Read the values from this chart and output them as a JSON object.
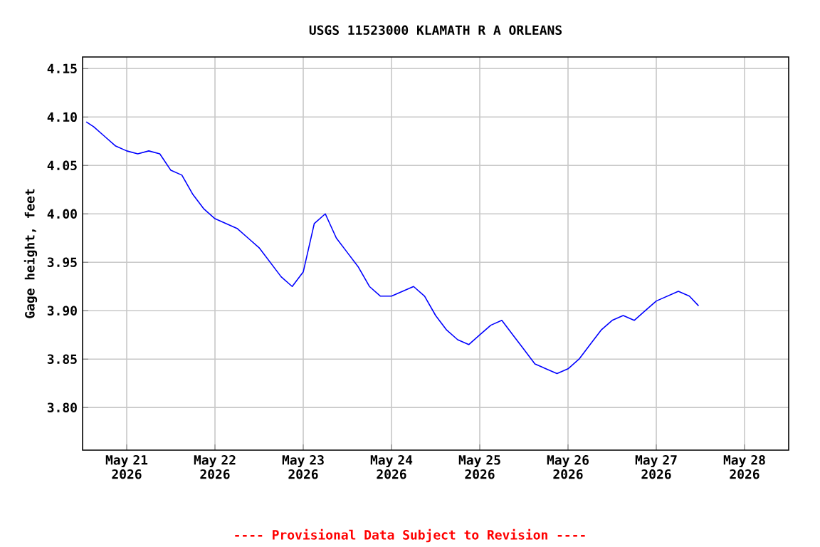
{
  "chart_data": {
    "type": "line",
    "title": "USGS 11523000 KLAMATH R A ORLEANS",
    "ylabel": "Gage height, feet",
    "annotations": [
      "---- Provisional Data Subject to Revision ----"
    ],
    "xlim": [
      "2026-05-20T12:00",
      "2026-05-28T12:00"
    ],
    "xticks": [
      {
        "value": "2026-05-21",
        "label": "May 21 2026"
      },
      {
        "value": "2026-05-22",
        "label": "May 22 2026"
      },
      {
        "value": "2026-05-23",
        "label": "May 23 2026"
      },
      {
        "value": "2026-05-24",
        "label": "May 24 2026"
      },
      {
        "value": "2026-05-25",
        "label": "May 25 2026"
      },
      {
        "value": "2026-05-26",
        "label": "May 26 2026"
      },
      {
        "value": "2026-05-27",
        "label": "May 27 2026"
      },
      {
        "value": "2026-05-28",
        "label": "May 28 2026"
      }
    ],
    "ylim": [
      3.756,
      4.162
    ],
    "yticks": [
      {
        "value": 3.8,
        "label": "3.80"
      },
      3.85,
      {
        "value": 3.9,
        "label": "3.90"
      },
      3.95,
      {
        "value": 4.0,
        "label": "4.00"
      },
      4.05,
      {
        "value": 4.1,
        "label": "4.10"
      },
      4.15
    ],
    "grid": true,
    "marker": "none",
    "line_style": "solid",
    "series": [
      {
        "color": "#0000ff",
        "x": [
          "2026-05-20T13:00",
          "2026-05-20T15:00",
          "2026-05-20T18:00",
          "2026-05-20T21:00",
          "2026-05-21T00:00",
          "2026-05-21T03:00",
          "2026-05-21T06:00",
          "2026-05-21T09:00",
          "2026-05-21T12:00",
          "2026-05-21T15:00",
          "2026-05-21T18:00",
          "2026-05-21T21:00",
          "2026-05-22T00:00",
          "2026-05-22T03:00",
          "2026-05-22T06:00",
          "2026-05-22T09:00",
          "2026-05-22T12:00",
          "2026-05-22T15:00",
          "2026-05-22T18:00",
          "2026-05-22T21:00",
          "2026-05-23T00:00",
          "2026-05-23T03:00",
          "2026-05-23T06:00",
          "2026-05-23T09:00",
          "2026-05-23T12:00",
          "2026-05-23T15:00",
          "2026-05-23T18:00",
          "2026-05-23T21:00",
          "2026-05-24T00:00",
          "2026-05-24T03:00",
          "2026-05-24T06:00",
          "2026-05-24T09:00",
          "2026-05-24T12:00",
          "2026-05-24T15:00",
          "2026-05-24T18:00",
          "2026-05-24T21:00",
          "2026-05-25T00:00",
          "2026-05-25T03:00",
          "2026-05-25T06:00",
          "2026-05-25T09:00",
          "2026-05-25T12:00",
          "2026-05-25T15:00",
          "2026-05-25T18:00",
          "2026-05-25T21:00",
          "2026-05-26T00:00",
          "2026-05-26T03:00",
          "2026-05-26T06:00",
          "2026-05-26T09:00",
          "2026-05-26T12:00",
          "2026-05-26T15:00",
          "2026-05-26T18:00",
          "2026-05-26T21:00",
          "2026-05-27T00:00",
          "2026-05-27T03:00",
          "2026-05-27T06:00",
          "2026-05-27T09:00",
          "2026-05-27T11:30"
        ],
        "values": [
          4.095,
          4.09,
          4.08,
          4.07,
          4.065,
          4.062,
          4.065,
          4.062,
          4.045,
          4.04,
          4.02,
          4.005,
          3.995,
          3.99,
          3.985,
          3.975,
          3.965,
          3.95,
          3.935,
          3.925,
          3.94,
          3.99,
          4.0,
          3.975,
          3.96,
          3.945,
          3.925,
          3.915,
          3.915,
          3.92,
          3.925,
          3.915,
          3.895,
          3.88,
          3.87,
          3.865,
          3.875,
          3.885,
          3.89,
          3.875,
          3.86,
          3.845,
          3.84,
          3.835,
          3.84,
          3.85,
          3.865,
          3.88,
          3.89,
          3.895,
          3.89,
          3.9,
          3.91,
          3.915,
          3.92,
          3.915,
          3.905
        ]
      }
    ]
  }
}
